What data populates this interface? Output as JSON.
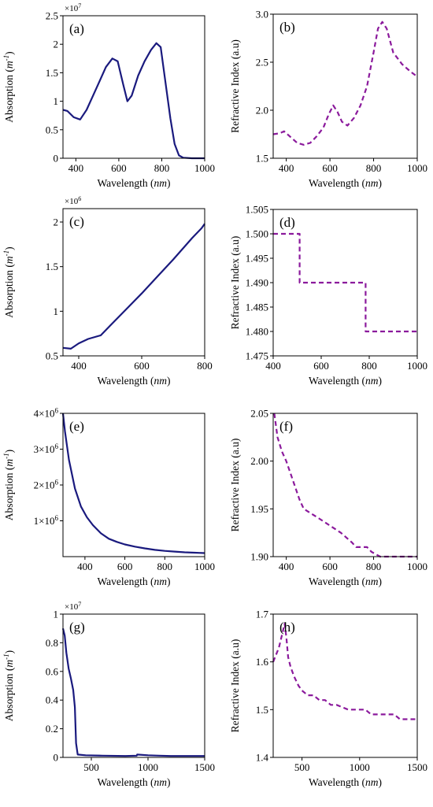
{
  "colors": {
    "absorption": "#1a1a7e",
    "refractive": "#8b1a9c",
    "axis": "#000000"
  },
  "chart_data": [
    {
      "type": "line",
      "panel": "(a)",
      "xlabel": "Wavelength",
      "xlabel_unit": "nm",
      "ylabel": "Absorption",
      "ylabel_unit": "m",
      "ylabel_exp": "-1",
      "multiplier": {
        "base": "×10",
        "exp": "7"
      },
      "xlim": [
        340,
        1000
      ],
      "ylim": [
        0,
        2.5
      ],
      "xticks": [
        400,
        600,
        800,
        1000
      ],
      "xtick_labels": [
        "400",
        "600",
        "800",
        "1000"
      ],
      "yticks": [
        0,
        0.5,
        1,
        1.5,
        2,
        2.5
      ],
      "ytick_labels": [
        "0",
        "0.5",
        "1",
        "1.5",
        "2",
        "2.5"
      ],
      "style": "solid",
      "color_key": "absorption",
      "series": [
        {
          "x": [
            340,
            360,
            390,
            420,
            450,
            480,
            510,
            540,
            570,
            595,
            620,
            640,
            660,
            690,
            720,
            750,
            775,
            795,
            815,
            840,
            860,
            880,
            900,
            940,
            1000
          ],
          "y": [
            0.85,
            0.83,
            0.72,
            0.68,
            0.85,
            1.1,
            1.35,
            1.6,
            1.75,
            1.7,
            1.3,
            1.0,
            1.1,
            1.45,
            1.7,
            1.9,
            2.02,
            1.95,
            1.4,
            0.7,
            0.25,
            0.05,
            0.01,
            0.0,
            0.0
          ]
        }
      ]
    },
    {
      "type": "line",
      "panel": "(b)",
      "xlabel": "Wavelength",
      "xlabel_unit": "nm",
      "ylabel": "Refractive Index (a.u)",
      "xlim": [
        340,
        1000
      ],
      "ylim": [
        1.5,
        3.0
      ],
      "xticks": [
        400,
        600,
        800,
        1000
      ],
      "xtick_labels": [
        "400",
        "600",
        "800",
        "1000"
      ],
      "yticks": [
        1.5,
        2.0,
        2.5,
        3.0
      ],
      "ytick_labels": [
        "1.5",
        "2.0",
        "2.5",
        "3.0"
      ],
      "style": "dashed",
      "color_key": "refractive",
      "series": [
        {
          "x": [
            340,
            370,
            390,
            420,
            450,
            480,
            510,
            540,
            570,
            595,
            615,
            635,
            655,
            680,
            710,
            740,
            770,
            800,
            820,
            840,
            860,
            890,
            930,
            970,
            1000
          ],
          "y": [
            1.75,
            1.76,
            1.78,
            1.72,
            1.66,
            1.64,
            1.66,
            1.73,
            1.82,
            1.96,
            2.05,
            1.98,
            1.88,
            1.84,
            1.92,
            2.05,
            2.25,
            2.6,
            2.85,
            2.92,
            2.85,
            2.6,
            2.48,
            2.4,
            2.35
          ]
        }
      ]
    },
    {
      "type": "line",
      "panel": "(c)",
      "xlabel": "Wavelength",
      "xlabel_unit": "nm",
      "ylabel": "Absorption",
      "ylabel_unit": "m",
      "ylabel_exp": "-1",
      "multiplier": {
        "base": "×10",
        "exp": "6"
      },
      "xlim": [
        350,
        800
      ],
      "ylim": [
        0.5,
        2.15
      ],
      "xticks": [
        400,
        600,
        800
      ],
      "xtick_labels": [
        "400",
        "600",
        "800"
      ],
      "yticks": [
        0.5,
        1,
        1.5,
        2
      ],
      "ytick_labels": [
        "0.5",
        "1",
        "1.5",
        "2"
      ],
      "style": "solid",
      "color_key": "absorption",
      "series": [
        {
          "x": [
            350,
            375,
            400,
            430,
            470,
            500,
            550,
            600,
            650,
            700,
            730,
            760,
            790,
            800
          ],
          "y": [
            0.59,
            0.58,
            0.64,
            0.69,
            0.73,
            0.84,
            1.02,
            1.2,
            1.39,
            1.58,
            1.7,
            1.82,
            1.93,
            1.98
          ]
        }
      ]
    },
    {
      "type": "line",
      "panel": "(d)",
      "xlabel": "Wavelength",
      "xlabel_unit": "nm",
      "ylabel": "Refractive Index (a.u)",
      "xlim": [
        400,
        1000
      ],
      "ylim": [
        1.475,
        1.505
      ],
      "xticks": [
        400,
        600,
        800,
        1000
      ],
      "xtick_labels": [
        "400",
        "600",
        "800",
        "1000"
      ],
      "yticks": [
        1.475,
        1.48,
        1.485,
        1.49,
        1.495,
        1.5,
        1.505
      ],
      "ytick_labels": [
        "1.475",
        "1.480",
        "1.485",
        "1.490",
        "1.495",
        "1.500",
        "1.505"
      ],
      "style": "dashed",
      "color_key": "refractive",
      "series": [
        {
          "x": [
            400,
            510,
            510,
            785,
            785,
            1000
          ],
          "y": [
            1.5,
            1.5,
            1.49,
            1.49,
            1.48,
            1.48
          ]
        }
      ]
    },
    {
      "type": "line",
      "panel": "(e)",
      "xlabel": "Wavelength",
      "xlabel_unit": "nm",
      "ylabel": "Absorption",
      "ylabel_unit": "m",
      "ylabel_exp": "-1",
      "xlim": [
        290,
        1000
      ],
      "ylim": [
        0,
        4000000
      ],
      "xticks": [
        400,
        600,
        800,
        1000
      ],
      "xtick_labels": [
        "400",
        "600",
        "800",
        "1000"
      ],
      "yticks": [
        1000000,
        2000000,
        3000000,
        4000000
      ],
      "ytick_labels": [
        {
          "base": "1×10",
          "exp": "6"
        },
        {
          "base": "2×10",
          "exp": "6"
        },
        {
          "base": "3×10",
          "exp": "6"
        },
        {
          "base": "4×10",
          "exp": "6"
        }
      ],
      "style": "solid",
      "color_key": "absorption",
      "series": [
        {
          "x": [
            290,
            300,
            320,
            350,
            380,
            410,
            440,
            480,
            520,
            560,
            600,
            650,
            700,
            750,
            800,
            850,
            900,
            950,
            1000
          ],
          "y": [
            4000000,
            3500000,
            2700000,
            1900000,
            1400000,
            1100000,
            880000,
            650000,
            500000,
            410000,
            340000,
            280000,
            230000,
            190000,
            160000,
            140000,
            120000,
            110000,
            100000
          ]
        }
      ]
    },
    {
      "type": "line",
      "panel": "(f)",
      "xlabel": "Wavelength",
      "xlabel_unit": "nm",
      "ylabel": "Refractive Index (a.u)",
      "xlim": [
        340,
        1000
      ],
      "ylim": [
        1.9,
        2.05
      ],
      "xticks": [
        400,
        600,
        800,
        1000
      ],
      "xtick_labels": [
        "400",
        "600",
        "800",
        "1000"
      ],
      "yticks": [
        1.9,
        1.95,
        2.0,
        2.05
      ],
      "ytick_labels": [
        "1.90",
        "1.95",
        "2.00",
        "2.05"
      ],
      "style": "dashed",
      "color_key": "refractive",
      "series": [
        {
          "x": [
            345,
            360,
            380,
            400,
            430,
            460,
            480,
            550,
            650,
            700,
            720,
            770,
            790,
            830,
            850,
            1000
          ],
          "y": [
            2.05,
            2.025,
            2.01,
            2.0,
            1.98,
            1.96,
            1.95,
            1.94,
            1.925,
            1.915,
            1.91,
            1.91,
            1.905,
            1.9,
            1.9,
            1.9
          ]
        }
      ]
    },
    {
      "type": "line",
      "panel": "(g)",
      "xlabel": "Wavelength",
      "xlabel_unit": "nm",
      "ylabel": "Absorption",
      "ylabel_unit": "m",
      "ylabel_exp": "-1",
      "multiplier": {
        "base": "×10",
        "exp": "7"
      },
      "xlim": [
        250,
        1500
      ],
      "ylim": [
        0,
        1.0
      ],
      "xticks": [
        500,
        1000,
        1500
      ],
      "xtick_labels": [
        "500",
        "1000",
        "1500"
      ],
      "yticks": [
        0,
        0.2,
        0.4,
        0.6,
        0.8,
        1.0
      ],
      "ytick_labels": [
        "0",
        "0.2",
        "0.4",
        "0.6",
        "0.8",
        "1"
      ],
      "style": "solid",
      "color_key": "absorption",
      "series": [
        {
          "x": [
            250,
            265,
            280,
            300,
            320,
            340,
            355,
            365,
            380,
            450,
            600,
            800,
            900,
            905,
            1000,
            1100,
            1200,
            1300,
            1400,
            1500
          ],
          "y": [
            0.9,
            0.85,
            0.73,
            0.62,
            0.55,
            0.47,
            0.35,
            0.1,
            0.02,
            0.015,
            0.012,
            0.01,
            0.012,
            0.02,
            0.015,
            0.012,
            0.01,
            0.01,
            0.01,
            0.01
          ]
        }
      ]
    },
    {
      "type": "line",
      "panel": "(h)",
      "xlabel": "Wavelength",
      "xlabel_unit": "nm",
      "ylabel": "Refractive Index (a.u)",
      "xlim": [
        250,
        1500
      ],
      "ylim": [
        1.4,
        1.7
      ],
      "xticks": [
        500,
        1000,
        1500
      ],
      "xtick_labels": [
        "500",
        "1000",
        "1500"
      ],
      "yticks": [
        1.4,
        1.5,
        1.6,
        1.7
      ],
      "ytick_labels": [
        "1.4",
        "1.5",
        "1.6",
        "1.7"
      ],
      "style": "dashed",
      "color_key": "refractive",
      "series": [
        {
          "x": [
            250,
            300,
            330,
            350,
            365,
            380,
            400,
            430,
            470,
            500,
            550,
            600,
            650,
            700,
            750,
            800,
            900,
            1000,
            1050,
            1100,
            1200,
            1300,
            1350,
            1450,
            1500
          ],
          "y": [
            1.6,
            1.63,
            1.66,
            1.68,
            1.65,
            1.61,
            1.59,
            1.57,
            1.55,
            1.54,
            1.53,
            1.53,
            1.52,
            1.52,
            1.51,
            1.51,
            1.5,
            1.5,
            1.5,
            1.49,
            1.49,
            1.49,
            1.48,
            1.48,
            1.48
          ]
        }
      ]
    }
  ]
}
